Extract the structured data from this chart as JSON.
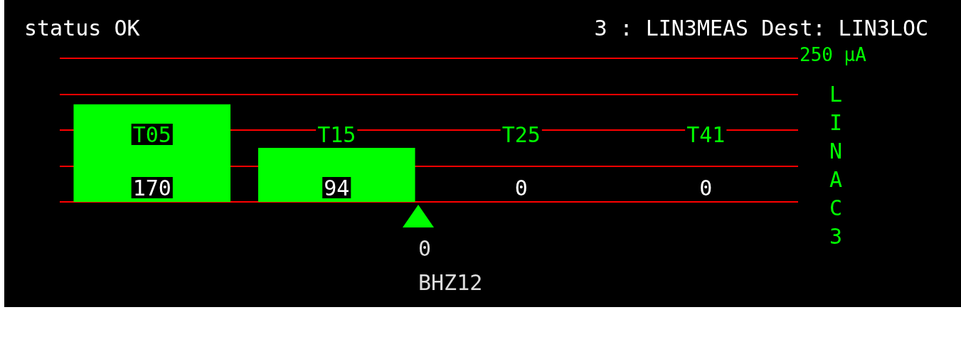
{
  "chart_data": {
    "type": "bar",
    "title": "status OK",
    "subtitle": "3 : LIN3MEAS Dest: LIN3LOC",
    "ylabel": "LINAC3",
    "categories": [
      "T05",
      "T15",
      "T25",
      "T41"
    ],
    "values": [
      170,
      94,
      0,
      0
    ],
    "color": "#00ff00",
    "data_labels": true,
    "ylim": [
      0,
      250
    ],
    "yticks": [
      {
        "value": 0,
        "label": null
      },
      {
        "value": 62.5,
        "label": null
      },
      {
        "value": 125,
        "label": null
      },
      {
        "value": 187.5,
        "label": null
      },
      {
        "value": 250,
        "label": null
      }
    ],
    "grid": "y",
    "tick_labels": "x",
    "annotations": [
      "250 µA",
      "0",
      "BHZ12"
    ]
  }
}
